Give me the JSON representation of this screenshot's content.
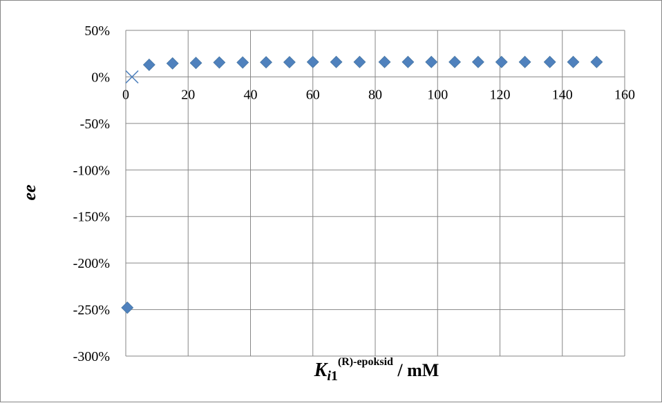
{
  "chart_data": {
    "type": "scatter",
    "title": "",
    "xlabel": {
      "main": "K",
      "subscript_italic": "i",
      "subscript_digit": "1",
      "superscript": "(R)-epoksid",
      "unit": " / mM"
    },
    "ylabel": "ee",
    "xlim": [
      0,
      160
    ],
    "ylim": [
      -300,
      50
    ],
    "x_ticks": [
      0,
      20,
      40,
      60,
      80,
      100,
      120,
      140,
      160
    ],
    "y_ticks": [
      50,
      0,
      -50,
      -100,
      -150,
      -200,
      -250,
      -300
    ],
    "y_tick_labels": [
      "50%",
      "0%",
      "-50%",
      "-100%",
      "-150%",
      "-200%",
      "-250%",
      "-300%"
    ],
    "grid": true,
    "series": [
      {
        "marker": "diamond",
        "color": "#4F81BD",
        "points": [
          [
            0.5,
            -248
          ],
          [
            7.5,
            13
          ],
          [
            15,
            14.5
          ],
          [
            22.5,
            15
          ],
          [
            30,
            15.5
          ],
          [
            37.5,
            15.5
          ],
          [
            45,
            15.7
          ],
          [
            52.5,
            15.8
          ],
          [
            60,
            16
          ],
          [
            67.5,
            16
          ],
          [
            75,
            16
          ],
          [
            83,
            16
          ],
          [
            90.5,
            16
          ],
          [
            98,
            16
          ],
          [
            105.5,
            16
          ],
          [
            113,
            16
          ],
          [
            120.5,
            16
          ],
          [
            128,
            16
          ],
          [
            136,
            16
          ],
          [
            143.5,
            16
          ],
          [
            151,
            16
          ]
        ]
      },
      {
        "marker": "x",
        "color": "#4F81BD",
        "points": [
          [
            2,
            0
          ]
        ]
      }
    ]
  }
}
